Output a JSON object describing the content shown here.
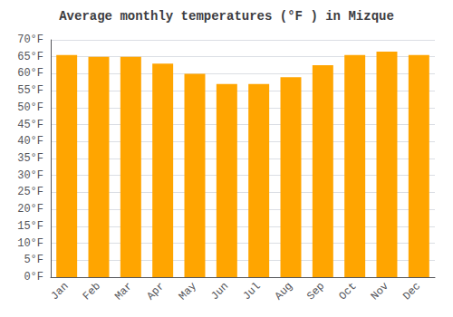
{
  "chart_data": {
    "type": "bar",
    "title": "Average monthly temperatures (°F ) in Mizque",
    "categories": [
      "Jan",
      "Feb",
      "Mar",
      "Apr",
      "May",
      "Jun",
      "Jul",
      "Aug",
      "Sep",
      "Oct",
      "Nov",
      "Dec"
    ],
    "values": [
      65.5,
      65.0,
      65.0,
      63.0,
      60.0,
      57.0,
      57.0,
      59.0,
      62.5,
      65.5,
      66.5,
      65.5
    ],
    "color": "#FFA500",
    "ylim": [
      0,
      70
    ],
    "yticks": [
      {
        "value": 0,
        "label": "0°F"
      },
      {
        "value": 5,
        "label": "5°F"
      },
      {
        "value": 10,
        "label": "10°F"
      },
      {
        "value": 15,
        "label": "15°F"
      },
      {
        "value": 20,
        "label": "20°F"
      },
      {
        "value": 25,
        "label": "25°F"
      },
      {
        "value": 30,
        "label": "30°F"
      },
      {
        "value": 35,
        "label": "35°F"
      },
      {
        "value": 40,
        "label": "40°F"
      },
      {
        "value": 45,
        "label": "45°F"
      },
      {
        "value": 50,
        "label": "50°F"
      },
      {
        "value": 55,
        "label": "55°F"
      },
      {
        "value": 60,
        "label": "60°F"
      },
      {
        "value": 65,
        "label": "65°F"
      },
      {
        "value": 70,
        "label": "70°F"
      }
    ],
    "grid": true
  }
}
